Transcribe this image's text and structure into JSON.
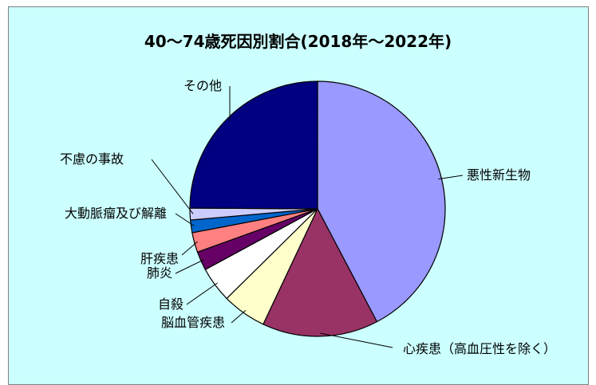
{
  "chart_data": {
    "type": "pie",
    "title": "40～74歳死因別割合(2018年～2022年)",
    "categories": [
      "悪性新生物",
      "心疾患（高血圧性を除く）",
      "脳血管疾患",
      "自殺",
      "肺炎",
      "肝疾患",
      "大動脈瘤及び解離",
      "不慮の事故",
      "その他"
    ],
    "values": [
      42.3,
      14.7,
      5.6,
      4.5,
      2.4,
      2.5,
      1.6,
      1.5,
      24.9
    ],
    "colors": [
      "#9999ff",
      "#993366",
      "#ffffcc",
      "#ffffff",
      "#660066",
      "#ff8080",
      "#0066cc",
      "#ccccff",
      "#000080"
    ]
  }
}
